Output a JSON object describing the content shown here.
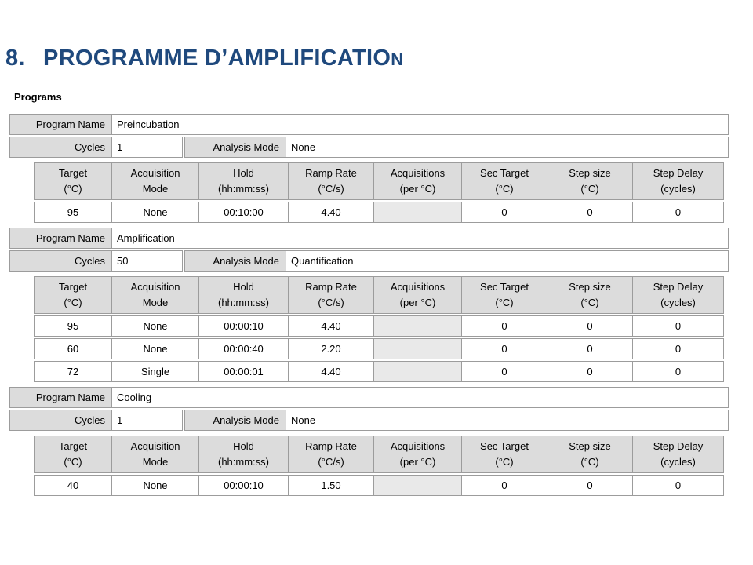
{
  "title": {
    "number": "8.",
    "main": "PROGRAMME D’AMPLIFICATIO",
    "small_cap": "N"
  },
  "programs_label": "Programs",
  "colors": {
    "title_blue": "#1F497D",
    "header_gray": "#DCDCDC",
    "disabled_cell_gray": "#E9E9E9",
    "border_gray": "#9C9C9C",
    "background": "#FFFFFF"
  },
  "field_labels": {
    "program_name": "Program Name",
    "cycles": "Cycles",
    "analysis_mode": "Analysis Mode"
  },
  "step_columns": [
    "Target\n(°C)",
    "Acquisition\nMode",
    "Hold\n(hh:mm:ss)",
    "Ramp Rate\n(°C/s)",
    "Acquisitions\n(per °C)",
    "Sec Target\n(°C)",
    "Step size\n(°C)",
    "Step Delay\n(cycles)"
  ],
  "programs": [
    {
      "name": "Preincubation",
      "cycles": "1",
      "analysis_mode": "None",
      "steps": [
        {
          "target": "95",
          "acquisition_mode": "None",
          "hold": "00:10:00",
          "ramp_rate": "4.40",
          "acquisitions_per_c": "",
          "sec_target": "0",
          "step_size": "0",
          "step_delay": "0"
        }
      ]
    },
    {
      "name": "Amplification",
      "cycles": "50",
      "analysis_mode": "Quantification",
      "steps": [
        {
          "target": "95",
          "acquisition_mode": "None",
          "hold": "00:00:10",
          "ramp_rate": "4.40",
          "acquisitions_per_c": "",
          "sec_target": "0",
          "step_size": "0",
          "step_delay": "0"
        },
        {
          "target": "60",
          "acquisition_mode": "None",
          "hold": "00:00:40",
          "ramp_rate": "2.20",
          "acquisitions_per_c": "",
          "sec_target": "0",
          "step_size": "0",
          "step_delay": "0"
        },
        {
          "target": "72",
          "acquisition_mode": "Single",
          "hold": "00:00:01",
          "ramp_rate": "4.40",
          "acquisitions_per_c": "",
          "sec_target": "0",
          "step_size": "0",
          "step_delay": "0"
        }
      ]
    },
    {
      "name": "Cooling",
      "cycles": "1",
      "analysis_mode": "None",
      "steps": [
        {
          "target": "40",
          "acquisition_mode": "None",
          "hold": "00:00:10",
          "ramp_rate": "1.50",
          "acquisitions_per_c": "",
          "sec_target": "0",
          "step_size": "0",
          "step_delay": "0"
        }
      ]
    }
  ]
}
